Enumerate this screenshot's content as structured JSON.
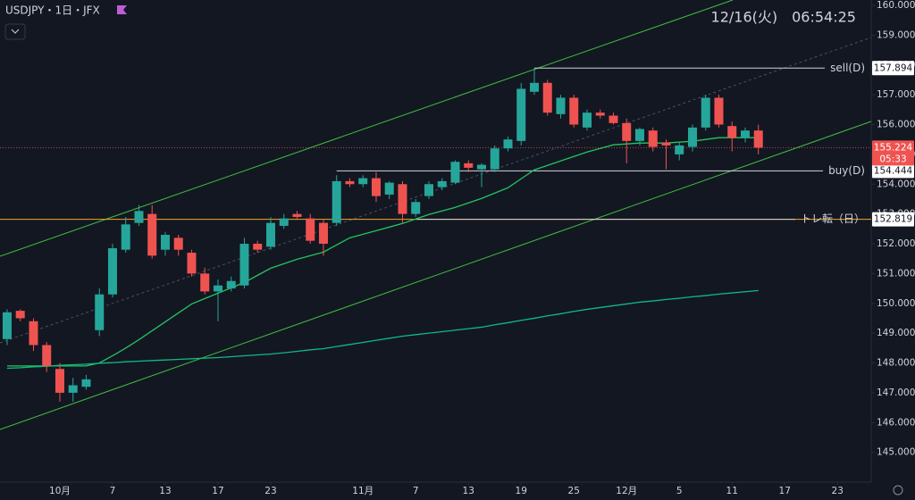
{
  "chart_data": {
    "type": "candlestick",
    "title": "USDJPY・1日・JFX",
    "clock": "12/16(火)　06:54:25",
    "countdown": "05:33",
    "xlim": [
      -0.54,
      65.56
    ],
    "ylim": [
      144,
      160.18
    ],
    "yticks": [
      {
        "value": 145,
        "label": "145.000"
      },
      {
        "value": 146,
        "label": "146.000"
      },
      {
        "value": 147,
        "label": "147.000"
      },
      {
        "value": 148,
        "label": "148.000"
      },
      {
        "value": 149,
        "label": "149.000"
      },
      {
        "value": 150,
        "label": "150.000"
      },
      {
        "value": 151,
        "label": "151.000"
      },
      {
        "value": 152,
        "label": "152.000"
      },
      {
        "value": 153,
        "label": "153.000"
      },
      {
        "value": 154,
        "label": "154.000"
      },
      {
        "value": 155,
        "label": "155.000"
      },
      {
        "value": 156,
        "label": "156.000"
      },
      {
        "value": 157,
        "label": "157.000"
      },
      {
        "value": 158,
        "label": "158.000"
      },
      {
        "value": 159,
        "label": "159.000"
      },
      {
        "value": 160,
        "label": "160.000"
      }
    ],
    "xticks": [
      {
        "value": 4,
        "label": "10月"
      },
      {
        "value": 8,
        "label": "7"
      },
      {
        "value": 12,
        "label": "13"
      },
      {
        "value": 16,
        "label": "17"
      },
      {
        "value": 20,
        "label": "23"
      },
      {
        "value": 27,
        "label": "11月"
      },
      {
        "value": 31,
        "label": "7"
      },
      {
        "value": 35,
        "label": "13"
      },
      {
        "value": 39,
        "label": "19"
      },
      {
        "value": 43,
        "label": "25"
      },
      {
        "value": 47,
        "label": "12月"
      },
      {
        "value": 51,
        "label": "5"
      },
      {
        "value": 55,
        "label": "11"
      },
      {
        "value": 59,
        "label": "17"
      },
      {
        "value": 63,
        "label": "23"
      }
    ],
    "up_color": "#26a69a",
    "down_color": "#ef5350",
    "candles": {
      "open": [
        148.8,
        149.75,
        149.4,
        148.6,
        147.8,
        147.0,
        147.2,
        149.1,
        150.3,
        151.8,
        152.7,
        153.0,
        151.8,
        152.2,
        151.7,
        151.0,
        150.4,
        150.5,
        150.6,
        152.0,
        151.9,
        152.6,
        153.0,
        152.85,
        152.7,
        152.7,
        154.1,
        154.0,
        154.2,
        153.65,
        154.0,
        153.0,
        153.6,
        153.9,
        154.05,
        154.7,
        154.5,
        154.5,
        155.2,
        155.45,
        157.1,
        157.4,
        156.35,
        156.9,
        155.9,
        156.4,
        156.3,
        156.05,
        155.45,
        155.8,
        155.4,
        155.0,
        155.25,
        155.9,
        156.9,
        155.95,
        155.55,
        155.8
      ],
      "high": [
        149.8,
        149.8,
        149.5,
        148.7,
        148.0,
        147.5,
        147.6,
        150.5,
        152.0,
        152.9,
        153.3,
        153.3,
        152.4,
        152.3,
        151.8,
        151.2,
        150.8,
        150.9,
        152.2,
        152.1,
        152.9,
        153.0,
        153.1,
        153.0,
        152.8,
        154.3,
        154.2,
        154.3,
        154.4,
        154.1,
        154.1,
        153.5,
        154.1,
        154.2,
        154.8,
        154.8,
        154.7,
        155.3,
        155.6,
        157.4,
        157.9,
        157.5,
        157.0,
        157.0,
        156.5,
        156.5,
        156.4,
        156.2,
        155.9,
        155.9,
        155.5,
        155.4,
        156.0,
        157.0,
        157.0,
        156.1,
        155.9,
        156.0
      ],
      "low": [
        148.6,
        149.4,
        148.4,
        147.7,
        146.7,
        146.7,
        147.1,
        148.9,
        150.2,
        151.7,
        152.6,
        151.5,
        151.6,
        151.6,
        150.9,
        150.3,
        149.4,
        150.4,
        150.5,
        151.7,
        151.8,
        152.5,
        152.8,
        152.0,
        151.6,
        152.6,
        153.9,
        153.9,
        153.4,
        153.5,
        152.7,
        152.9,
        153.5,
        153.8,
        154.0,
        154.4,
        153.9,
        154.4,
        155.1,
        155.3,
        157.0,
        156.3,
        156.2,
        155.9,
        155.8,
        156.2,
        156.0,
        154.7,
        155.3,
        155.1,
        154.5,
        154.8,
        155.1,
        155.8,
        155.9,
        155.1,
        155.4,
        155.0
      ],
      "close": [
        149.7,
        149.5,
        148.6,
        147.9,
        147.0,
        147.25,
        147.45,
        150.3,
        151.85,
        152.65,
        153.1,
        151.6,
        152.3,
        151.8,
        151.0,
        150.4,
        150.6,
        150.75,
        152.0,
        151.8,
        152.7,
        152.85,
        152.9,
        152.1,
        152.0,
        154.1,
        154.0,
        154.2,
        153.6,
        154.05,
        153.0,
        153.4,
        154.0,
        154.1,
        154.75,
        154.55,
        154.65,
        155.2,
        155.5,
        157.2,
        157.4,
        156.4,
        156.9,
        156.0,
        156.4,
        156.3,
        156.05,
        155.45,
        155.85,
        155.25,
        155.3,
        155.3,
        155.9,
        156.9,
        156.0,
        155.55,
        155.8,
        155.224
      ]
    },
    "lines": [
      {
        "color": "#22c55e",
        "values": [
          147.9,
          147.9,
          147.9,
          147.9,
          147.9,
          147.9,
          147.9,
          148.0,
          148.24,
          148.5,
          148.78,
          149.08,
          149.38,
          149.68,
          149.98,
          150.16,
          150.34,
          150.52,
          150.7,
          150.94,
          151.18,
          151.33,
          151.48,
          151.6,
          151.72,
          151.96,
          152.2,
          152.32,
          152.44,
          152.56,
          152.68,
          152.83,
          152.98,
          153.1,
          153.22,
          153.37,
          153.52,
          153.7,
          153.88,
          154.18,
          154.48,
          154.63,
          154.78,
          154.93,
          155.08,
          155.2,
          155.32,
          155.35,
          155.38,
          155.38,
          155.38,
          155.41,
          155.44,
          155.5,
          155.56,
          155.56,
          155.56,
          155.56
        ]
      },
      {
        "color": "#10b981",
        "values": [
          147.82,
          147.84,
          147.87,
          147.89,
          147.92,
          147.94,
          147.96,
          147.99,
          148.01,
          148.04,
          148.06,
          148.08,
          148.1,
          148.12,
          148.14,
          148.16,
          148.18,
          148.21,
          148.24,
          148.27,
          148.3,
          148.34,
          148.39,
          148.44,
          148.48,
          148.55,
          148.62,
          148.69,
          148.76,
          148.83,
          148.9,
          148.95,
          149.0,
          149.05,
          149.1,
          149.15,
          149.2,
          149.28,
          149.35,
          149.43,
          149.5,
          149.58,
          149.65,
          149.73,
          149.8,
          149.86,
          149.92,
          149.98,
          150.04,
          150.08,
          150.13,
          150.17,
          150.22,
          150.26,
          150.31,
          150.35,
          150.39,
          150.43
        ]
      }
    ],
    "levels": [
      {
        "label": "sell(D)",
        "value": 157.894,
        "start": 40,
        "color": "#d1d4dc"
      },
      {
        "label": "buy(D)",
        "value": 154.444,
        "start": 25,
        "color": "#d1d4dc"
      },
      {
        "label": "トレ転（日）",
        "value": 152.819,
        "start": 31,
        "color": "#d1d4dc",
        "extend_color": "#f5a623"
      }
    ],
    "last_price": 155.224
  }
}
